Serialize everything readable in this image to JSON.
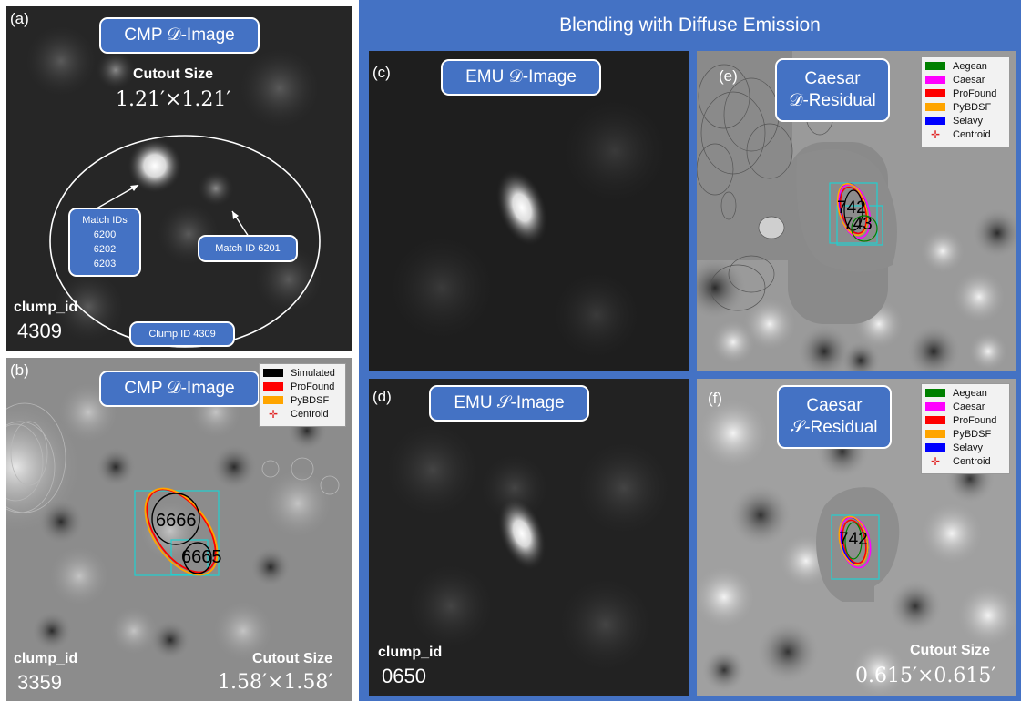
{
  "figure_title": "Blending with Diffuse Emission",
  "panels": {
    "a": {
      "label": "(a)",
      "title": "CMP 𝒟-Image",
      "cutout_label": "Cutout Size",
      "cutout_value": "1.21′×1.21′",
      "callout_match_ids": [
        "Match IDs",
        "6200",
        "6202",
        "6203"
      ],
      "callout_match_id": "Match ID 6201",
      "callout_clump": "Clump ID 4309",
      "clump_label": "clump_id",
      "clump_value": "4309"
    },
    "b": {
      "label": "(b)",
      "title": "CMP 𝒟-Image",
      "legend": [
        {
          "name": "Simulated",
          "color": "#000000"
        },
        {
          "name": "ProFound",
          "color": "#ff0000"
        },
        {
          "name": "PyBDSF",
          "color": "#ffa500"
        },
        {
          "name": "Centroid",
          "marker": "✛"
        }
      ],
      "source_ids": [
        "6666",
        "6665"
      ],
      "clump_label": "clump_id",
      "clump_value": "3359",
      "cutout_label": "Cutout Size",
      "cutout_value": "1.58′×1.58′"
    },
    "c": {
      "label": "(c)",
      "title": "EMU 𝒟-Image"
    },
    "d": {
      "label": "(d)",
      "title": "EMU 𝒮-Image",
      "clump_label": "clump_id",
      "clump_value": "0650"
    },
    "e": {
      "label": "(e)",
      "title_line1": "Caesar",
      "title_line2": "𝒟-Residual",
      "legend": [
        {
          "name": "Aegean",
          "color": "#008000"
        },
        {
          "name": "Caesar",
          "color": "#ff00ff"
        },
        {
          "name": "ProFound",
          "color": "#ff0000"
        },
        {
          "name": "PyBDSF",
          "color": "#ffa500"
        },
        {
          "name": "Selavy",
          "color": "#0000ff"
        },
        {
          "name": "Centroid",
          "marker": "✛"
        }
      ],
      "source_ids": [
        "742",
        "743"
      ]
    },
    "f": {
      "label": "(f)",
      "title_line1": "Caesar",
      "title_line2": "𝒮-Residual",
      "legend": [
        {
          "name": "Aegean",
          "color": "#008000"
        },
        {
          "name": "Caesar",
          "color": "#ff00ff"
        },
        {
          "name": "ProFound",
          "color": "#ff0000"
        },
        {
          "name": "PyBDSF",
          "color": "#ffa500"
        },
        {
          "name": "Selavy",
          "color": "#0000ff"
        },
        {
          "name": "Centroid",
          "marker": "✛"
        }
      ],
      "source_ids": [
        "742"
      ],
      "cutout_label": "Cutout Size",
      "cutout_value": "0.615′×0.615′"
    }
  }
}
